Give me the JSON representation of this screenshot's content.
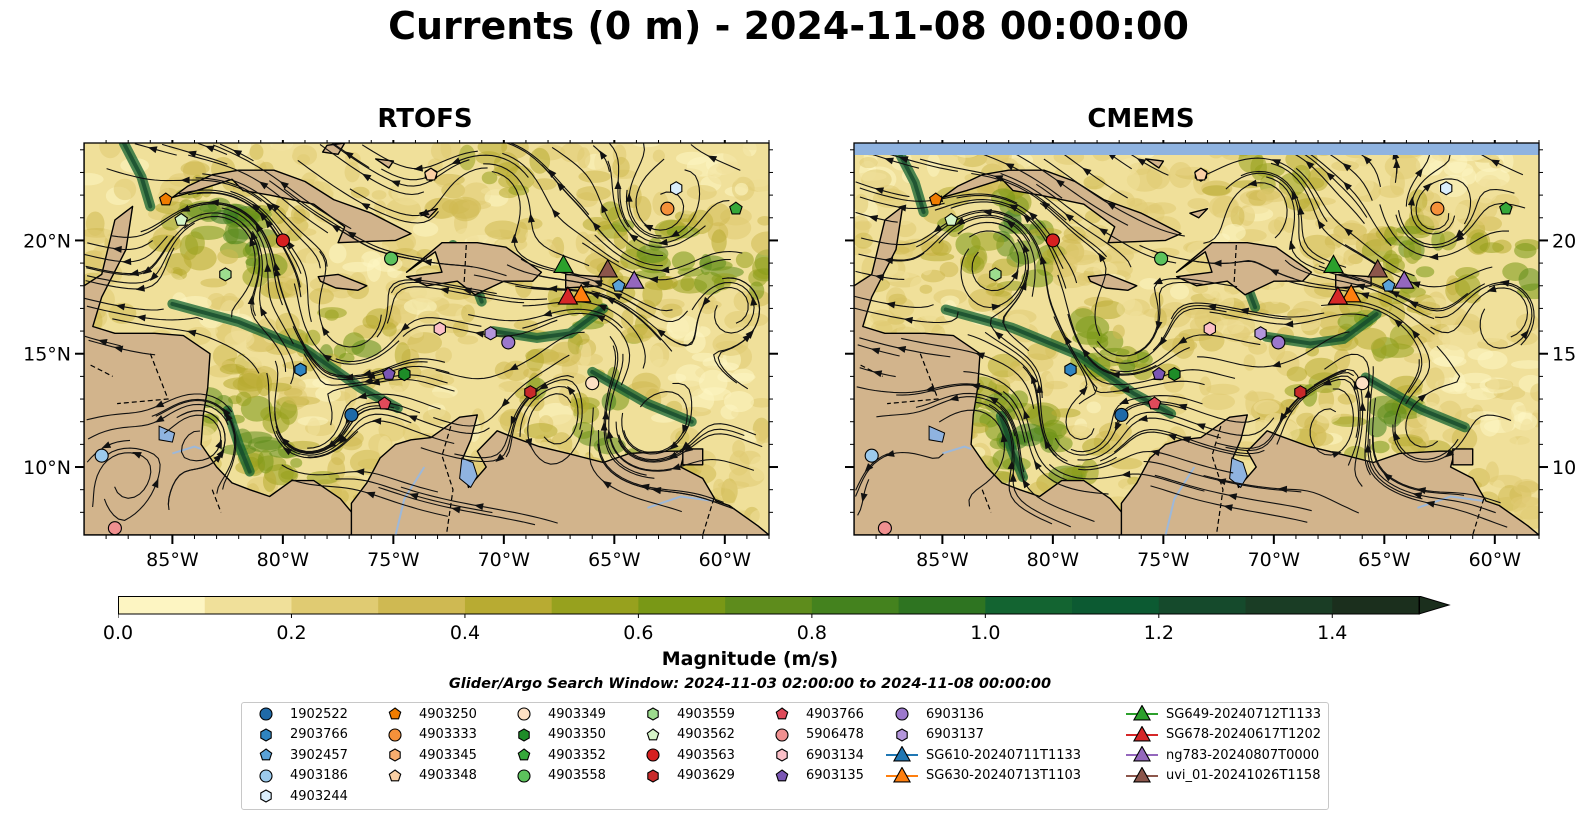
{
  "title": "Currents (0 m) - 2024-11-08 00:00:00",
  "panels": [
    {
      "title": "RTOFS",
      "shift": [
        0,
        0
      ]
    },
    {
      "title": "CMEMS",
      "shift": [
        0.15,
        -0.25
      ],
      "top_band": true
    }
  ],
  "axes": {
    "x_ticks": [
      "85°W",
      "80°W",
      "75°W",
      "70°W",
      "65°W",
      "60°W"
    ],
    "y_ticks": [
      "20°N",
      "15°N",
      "10°N"
    ],
    "lon_range": [
      -89,
      -58
    ],
    "lat_range": [
      7,
      24.3
    ]
  },
  "colors": {
    "land": "#d2b48c",
    "water": "#8fb3e0",
    "river": "#9db8d9"
  },
  "colorbar": {
    "label": "Magnitude (m/s)",
    "ticks": [
      "0.0",
      "0.2",
      "0.4",
      "0.6",
      "0.8",
      "1.0",
      "1.2",
      "1.4"
    ],
    "range": [
      0,
      1.5
    ],
    "colors": [
      "#fdf5c2",
      "#f0e09a",
      "#e0cb72",
      "#cfb952",
      "#b8ab32",
      "#97a11e",
      "#799816",
      "#5e8c1c",
      "#44821e",
      "#2e7421",
      "#136431",
      "#0c5a32",
      "#154a2c",
      "#1a3d25",
      "#1b2f1d"
    ]
  },
  "search_window": "Glider/Argo Search Window: 2024-11-03 02:00:00 to 2024-11-08 00:00:00",
  "legend": [
    {
      "name": "1902522",
      "marker": "circle",
      "color": "#1f6aa8",
      "lon": -76.9,
      "lat": 12.3
    },
    {
      "name": "2903766",
      "marker": "hexagon",
      "color": "#2f84c0",
      "lon": -79.2,
      "lat": 14.3
    },
    {
      "name": "3902457",
      "marker": "pentagon",
      "color": "#5aa2d8",
      "lon": -64.8,
      "lat": 18.0
    },
    {
      "name": "4903186",
      "marker": "circle",
      "color": "#9ccaec",
      "lon": -88.2,
      "lat": 10.5
    },
    {
      "name": "4903244",
      "marker": "hexagon",
      "color": "#daeefc",
      "lon": -62.2,
      "lat": 22.3
    },
    {
      "name": "4903250",
      "marker": "pentagon",
      "color": "#f07c00",
      "lon": -85.3,
      "lat": 21.8
    },
    {
      "name": "4903333",
      "marker": "circle",
      "color": "#f5913a",
      "lon": -62.6,
      "lat": 21.4
    },
    {
      "name": "4903345",
      "marker": "hexagon",
      "color": "#f8ad6e",
      "lon": -73.3,
      "lat": 22.9
    },
    {
      "name": "4903348",
      "marker": "pentagon",
      "color": "#fbd0a4",
      "lon": -73.3,
      "lat": 22.9
    },
    {
      "name": "4903349",
      "marker": "circle",
      "color": "#fde0c4",
      "lon": -66.0,
      "lat": 13.7
    },
    {
      "name": "4903350",
      "marker": "hexagon",
      "color": "#1e8c28",
      "lon": -74.5,
      "lat": 14.1
    },
    {
      "name": "4903352",
      "marker": "pentagon",
      "color": "#36a83a",
      "lon": -59.5,
      "lat": 21.4
    },
    {
      "name": "4903558",
      "marker": "circle",
      "color": "#5cc25c",
      "lon": -75.1,
      "lat": 19.2
    },
    {
      "name": "4903559",
      "marker": "hexagon",
      "color": "#9ddc8e",
      "lon": -82.6,
      "lat": 18.5
    },
    {
      "name": "4903562",
      "marker": "pentagon",
      "color": "#d6f4c8",
      "lon": -84.6,
      "lat": 20.9
    },
    {
      "name": "4903563",
      "marker": "circle",
      "color": "#d62020",
      "lon": -80.0,
      "lat": 20.0
    },
    {
      "name": "4903629",
      "marker": "hexagon",
      "color": "#c82a2a",
      "lon": -68.8,
      "lat": 13.3
    },
    {
      "name": "4903766",
      "marker": "pentagon",
      "color": "#e04a5a",
      "lon": -75.4,
      "lat": 12.8
    },
    {
      "name": "5906478",
      "marker": "circle",
      "color": "#f09090",
      "lon": -87.6,
      "lat": 7.3
    },
    {
      "name": "6903134",
      "marker": "hexagon",
      "color": "#fbc0c8",
      "lon": -72.9,
      "lat": 16.1
    },
    {
      "name": "6903135",
      "marker": "pentagon",
      "color": "#7a56b4",
      "lon": -75.2,
      "lat": 14.1
    },
    {
      "name": "6903136",
      "marker": "circle",
      "color": "#9c78cc",
      "lon": -69.8,
      "lat": 15.5
    },
    {
      "name": "6903137",
      "marker": "hexagon",
      "color": "#b496dc",
      "lon": -70.6,
      "lat": 15.9
    },
    {
      "name": "SG610-20240711T1133",
      "marker": "triangle",
      "color": "#1f77b4",
      "line": true
    },
    {
      "name": "SG630-20240713T1103",
      "marker": "triangle",
      "color": "#ff7f0e",
      "line": true,
      "lon": -66.5,
      "lat": 17.6
    },
    {
      "name": "SG649-20240712T1133",
      "marker": "triangle",
      "color": "#2ca02c",
      "line": true,
      "lon": -67.3,
      "lat": 18.9
    },
    {
      "name": "SG678-20240617T1202",
      "marker": "triangle",
      "color": "#d62728",
      "line": true,
      "lon": -67.1,
      "lat": 17.5
    },
    {
      "name": "ng783-20240807T0000",
      "marker": "triangle",
      "color": "#9467bd",
      "line": true,
      "lon": -64.1,
      "lat": 18.2
    },
    {
      "name": "uvi_01-20241026T1158",
      "marker": "triangle",
      "color": "#8c564b",
      "line": true,
      "lon": -65.3,
      "lat": 18.7
    }
  ]
}
